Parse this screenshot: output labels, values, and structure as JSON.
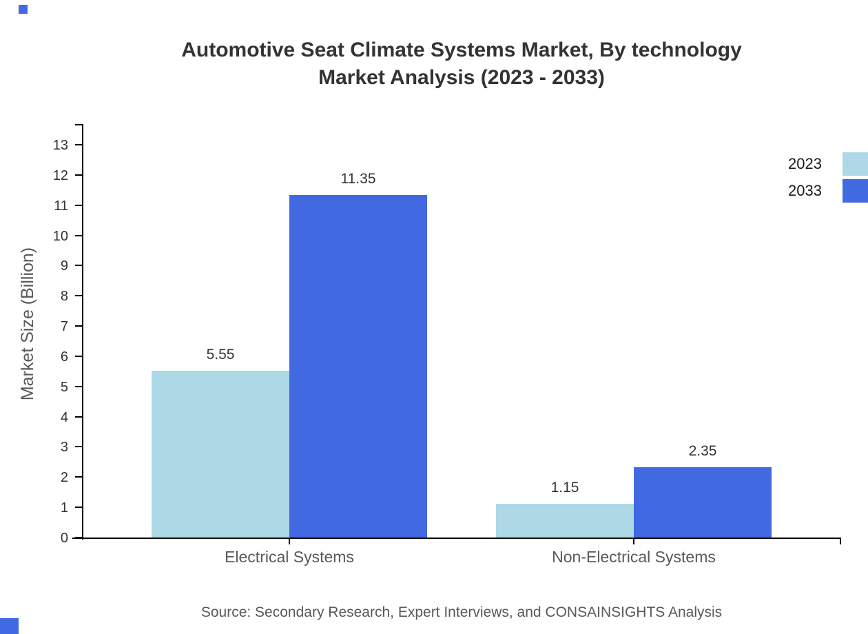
{
  "title": {
    "line1": "Automotive Seat Climate Systems Market, By technology",
    "line2": "Market Analysis (2023 - 2033)"
  },
  "source_note": "Source: Secondary Research, Expert Interviews, and CONSAINSIGHTS Analysis",
  "colors": {
    "series_2023": "#ADD8E6",
    "series_2033": "#4169E1",
    "axis": "#000000",
    "title_text": "#333333",
    "tick_text": "#333333",
    "category_text": "#595959",
    "watermark": "#4169E1"
  },
  "chart_data": {
    "type": "bar",
    "title": "Automotive Seat Climate Systems Market, By technology Market Analysis (2023 - 2033)",
    "categories": [
      "Electrical Systems",
      "Non-Electrical Systems"
    ],
    "series": [
      {
        "name": "2023",
        "color": "#ADD8E6",
        "values": [
          5.55,
          1.15
        ]
      },
      {
        "name": "2033",
        "color": "#4169E1",
        "values": [
          11.35,
          2.35
        ]
      }
    ],
    "xlabel": "",
    "ylabel": "Market Size (Billion)",
    "ylim": [
      0,
      13
    ],
    "yticks": [
      0,
      1,
      2,
      3,
      4,
      5,
      6,
      7,
      8,
      9,
      10,
      11,
      12,
      13
    ],
    "grid": false,
    "legend_position": "top-right",
    "value_labels": [
      "5.55",
      "11.35",
      "1.15",
      "2.35"
    ]
  }
}
